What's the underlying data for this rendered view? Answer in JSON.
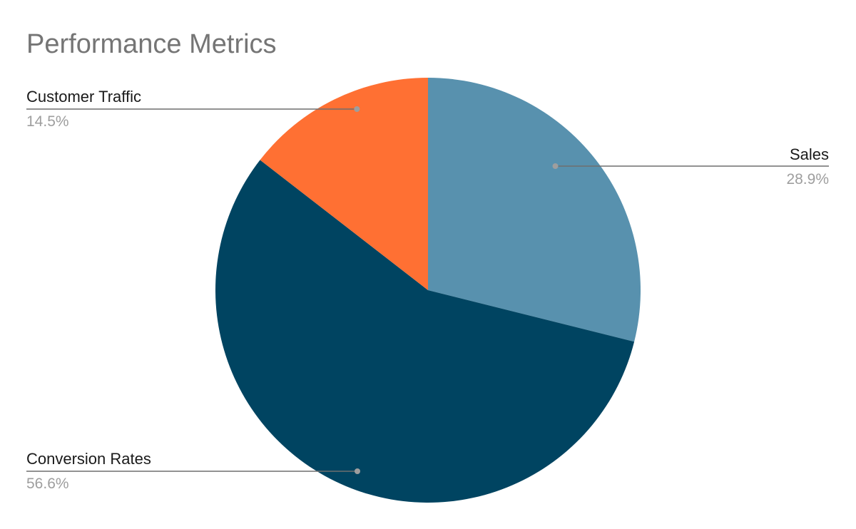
{
  "chart_data": {
    "type": "pie",
    "title": "Performance Metrics",
    "slices": [
      {
        "label": "Sales",
        "value": 28.9,
        "value_label": "28.9%",
        "color": "#5891ae"
      },
      {
        "label": "Conversion Rates",
        "value": 56.6,
        "value_label": "56.6%",
        "color": "#004461"
      },
      {
        "label": "Customer Traffic",
        "value": 14.5,
        "value_label": "14.5%",
        "color": "#ff7033"
      }
    ],
    "start_angle_deg": 0,
    "direction": "clockwise",
    "legend": "none",
    "labels_position": "outside-with-leader-lines"
  }
}
